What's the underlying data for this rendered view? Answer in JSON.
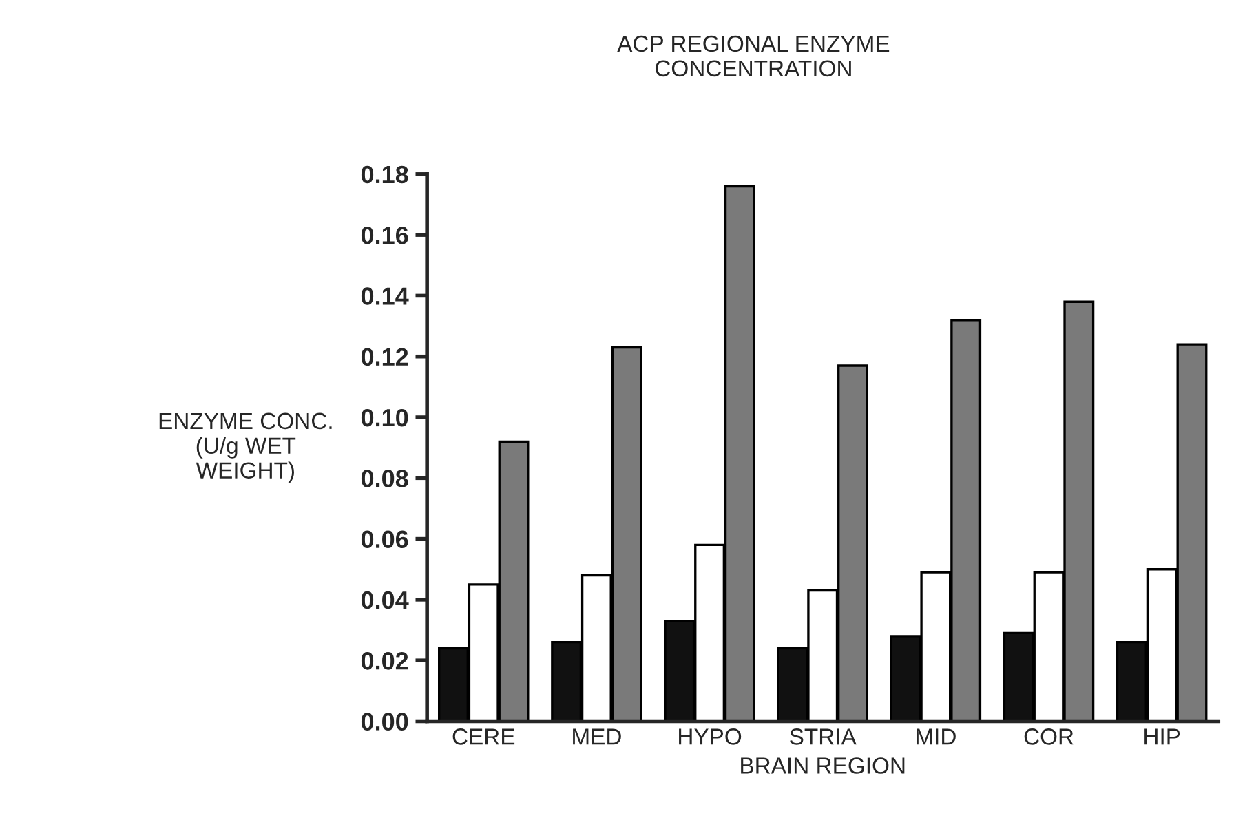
{
  "chart_data": {
    "type": "bar",
    "title": "ACP REGIONAL ENZYME\nCONCENTRATION",
    "xlabel": "BRAIN REGION",
    "ylabel": "ENZYME CONC.\n(U/g WET\nWEIGHT)",
    "categories": [
      "CERE",
      "MED",
      "HYPO",
      "STRIA",
      "MID",
      "COR",
      "HIP"
    ],
    "series": [
      {
        "color": "#111111",
        "values": [
          0.024,
          0.026,
          0.033,
          0.024,
          0.028,
          0.029,
          0.026
        ]
      },
      {
        "color": "#ffffff",
        "values": [
          0.045,
          0.048,
          0.058,
          0.043,
          0.049,
          0.049,
          0.05
        ]
      },
      {
        "color": "#7a7a7a",
        "values": [
          0.092,
          0.123,
          0.176,
          0.117,
          0.132,
          0.138,
          0.124
        ]
      }
    ],
    "ylim": [
      0,
      0.18
    ],
    "yticks": [
      {
        "value": 0,
        "label": "0.00"
      },
      {
        "value": 0.02,
        "label": "0.02"
      },
      {
        "value": 0.04,
        "label": "0.04"
      },
      {
        "value": 0.06,
        "label": "0.06"
      },
      {
        "value": 0.08,
        "label": "0.08"
      },
      {
        "value": 0.1,
        "label": "0.10"
      },
      {
        "value": 0.12,
        "label": "0.12"
      },
      {
        "value": 0.14,
        "label": "0.14"
      },
      {
        "value": 0.16,
        "label": "0.16"
      },
      {
        "value": 0.18,
        "label": "0.18"
      }
    ],
    "grid": false,
    "legend": false
  }
}
